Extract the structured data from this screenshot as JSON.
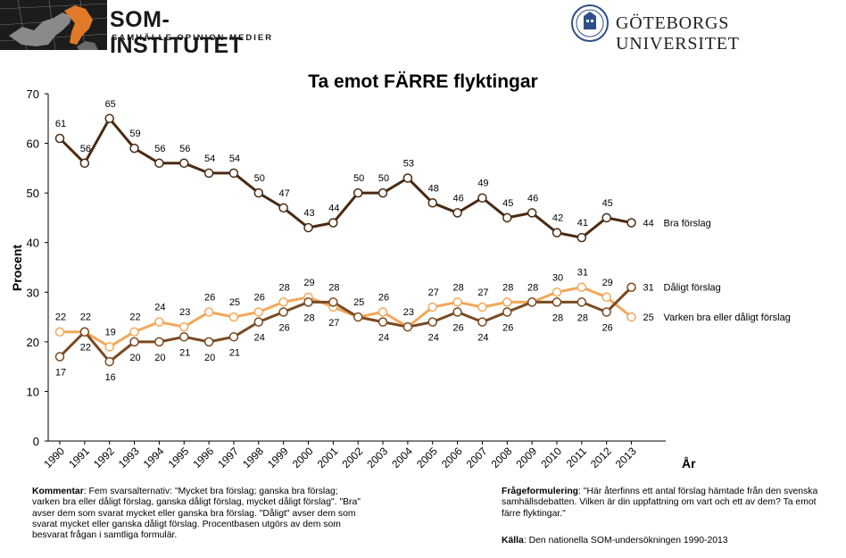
{
  "header": {
    "logo_title": "SOM-INSTITUTET",
    "logo_subtitle": "SAMHÄLLE OPINION MEDIER",
    "university": "GÖTEBORGS UNIVERSITET"
  },
  "chart_data": {
    "type": "line",
    "title": "Ta emot FÄRRE flyktingar",
    "ylabel": "Procent",
    "xlabel": "År",
    "ylim": [
      0,
      70
    ],
    "yticks": [
      0,
      10,
      20,
      30,
      40,
      50,
      60,
      70
    ],
    "categories": [
      "1990",
      "1991",
      "1992",
      "1993",
      "1994",
      "1995",
      "1996",
      "1997",
      "1998",
      "1999",
      "2000",
      "2001",
      "2002",
      "2003",
      "2004",
      "2005",
      "2006",
      "2007",
      "2008",
      "2009",
      "2010",
      "2011",
      "2012",
      "2013"
    ],
    "series": [
      {
        "name": "Bra förslag",
        "color": "#4a2a12",
        "values": [
          61,
          56,
          65,
          59,
          56,
          56,
          54,
          54,
          50,
          47,
          43,
          44,
          50,
          50,
          53,
          48,
          46,
          49,
          45,
          46,
          42,
          41,
          45,
          44
        ]
      },
      {
        "name": "Dåligt förslag",
        "color": "#7a4a22",
        "values": [
          17,
          22,
          16,
          20,
          20,
          21,
          20,
          21,
          24,
          26,
          28,
          28,
          25,
          24,
          23,
          24,
          26,
          24,
          26,
          28,
          28,
          28,
          26,
          31
        ]
      },
      {
        "name": "Varken bra eller dåligt förslag",
        "color": "#f2a85a",
        "values": [
          22,
          22,
          19,
          22,
          24,
          23,
          26,
          25,
          26,
          28,
          29,
          27,
          25,
          26,
          23,
          27,
          28,
          27,
          28,
          28,
          30,
          31,
          29,
          25
        ]
      }
    ],
    "labels_bra": [
      "61",
      "56",
      "65",
      "59",
      "56",
      "56",
      "54",
      "54",
      "50",
      "47",
      "43",
      "44",
      "50",
      "50",
      "53",
      "48",
      "46",
      "49",
      "45",
      "46",
      "42",
      "41",
      "45"
    ],
    "labels_lower_above": [
      "22",
      "22",
      "19",
      "22",
      "24",
      "23",
      "26",
      "25",
      "26",
      "28",
      "29",
      "28",
      "25",
      "26",
      "23",
      "27",
      "28",
      "27",
      "28",
      "28",
      "30",
      "31",
      "29"
    ],
    "labels_lower_below": [
      "17",
      "22",
      "16",
      "20",
      "20",
      "21",
      "20",
      "21",
      "24",
      "26",
      "28",
      "27",
      "",
      "24",
      "",
      "24",
      "26",
      "24",
      "26",
      "",
      "28",
      "28",
      "26"
    ],
    "end_labels": [
      {
        "value": "44",
        "text": "Bra förslag"
      },
      {
        "value": "31",
        "text": "Dåligt förslag"
      },
      {
        "value": "25",
        "text": "Varken bra eller dåligt förslag"
      }
    ]
  },
  "notes": {
    "kommentar_label": "Kommentar",
    "kommentar_text": ": Fem svarsalternativ: \"Mycket bra förslag; ganska bra förslag; varken bra eller dåligt förslag, ganska dåligt förslag, mycket dåligt förslag\". \"Bra\" avser dem som svarat mycket eller ganska bra förslag. \"Dåligt\" avser dem som svarat mycket eller ganska dåligt förslag. Procentbasen utgörs av dem som besvarat frågan i samtliga formulär.",
    "fraga_label": "Frågeformulering",
    "fraga_text": ": \"Här återfinns ett antal förslag hämtade från den svenska samhällsdebatten. Vilken är din uppfattning om vart och ett av dem? Ta emot färre flyktingar.\"",
    "kalla_label": "Källa",
    "kalla_text": ": Den nationella SOM-undersökningen 1990-2013"
  }
}
